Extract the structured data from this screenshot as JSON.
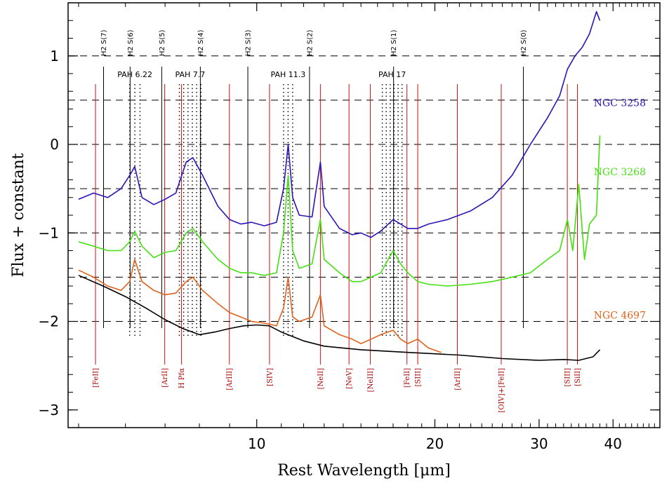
{
  "chart_data": {
    "type": "line",
    "xlabel": "Rest Wavelength [μm]",
    "ylabel": "Flux + constant",
    "xlim": [
      4.8,
      48
    ],
    "ylim": [
      -3.2,
      1.6
    ],
    "xscale": "log",
    "x_ticks": [
      {
        "v": 10,
        "label": "10"
      },
      {
        "v": 20,
        "label": "20"
      },
      {
        "v": 30,
        "label": "30"
      },
      {
        "v": 40,
        "label": "40"
      }
    ],
    "y_ticks": [
      {
        "v": 1,
        "label": "1"
      },
      {
        "v": 0,
        "label": "0"
      },
      {
        "v": -1,
        "label": "−1"
      },
      {
        "v": -2,
        "label": "−2"
      },
      {
        "v": -3,
        "label": "−3"
      }
    ],
    "dashed_levels": [
      1,
      0.5,
      0,
      -0.5,
      -1,
      -1.5,
      -2
    ],
    "colors": {
      "NGC 3258": "#2a14b8",
      "NGC 3268": "#44e010",
      "NGC 4697": "#e0621a",
      "template": "#000000",
      "ion_line": "#cc1111",
      "ion_text": "#aa0000"
    },
    "h2_lines": [
      {
        "x": 5.51,
        "label": "H2 S(7)"
      },
      {
        "x": 6.11,
        "label": "H2 S(6)"
      },
      {
        "x": 6.91,
        "label": "H2 S(5)"
      },
      {
        "x": 8.03,
        "label": "H2 S(4)"
      },
      {
        "x": 9.66,
        "label": "H2 S(3)"
      },
      {
        "x": 12.28,
        "label": "H2 S(2)"
      },
      {
        "x": 17.03,
        "label": "H2 S(1)"
      },
      {
        "x": 28.22,
        "label": "H2 S(0)"
      }
    ],
    "pah_features": [
      {
        "label": "PAH 6.22",
        "x1": 6.1,
        "x2": 6.35
      },
      {
        "label": "PAH 7.7",
        "x1": 7.4,
        "x2": 8.05
      },
      {
        "label": "PAH 11.3",
        "x1": 11.1,
        "x2": 11.5
      },
      {
        "label": "PAH 17",
        "x1": 16.3,
        "x2": 17.6
      }
    ],
    "ion_lines": [
      {
        "x": 5.34,
        "label": "[FeII]"
      },
      {
        "x": 6.99,
        "label": "[ArII]"
      },
      {
        "x": 7.46,
        "label": "H Pfα"
      },
      {
        "x": 8.99,
        "label": "[ArIII]"
      },
      {
        "x": 10.51,
        "label": "[SIV]"
      },
      {
        "x": 12.81,
        "label": "[NeII]"
      },
      {
        "x": 14.32,
        "label": "[NeV]"
      },
      {
        "x": 15.56,
        "label": "[NeIII]"
      },
      {
        "x": 17.94,
        "label": "[FeII]"
      },
      {
        "x": 18.71,
        "label": "[SIII]"
      },
      {
        "x": 21.83,
        "label": "[ArIII]"
      },
      {
        "x": 25.89,
        "label": "[OIV]+[FeII]"
      },
      {
        "x": 33.48,
        "label": "[SIII]"
      },
      {
        "x": 34.82,
        "label": "[SiII]"
      }
    ],
    "series": [
      {
        "name": "NGC 3258",
        "x": [
          5.0,
          5.3,
          5.6,
          5.9,
          6.1,
          6.22,
          6.4,
          6.7,
          7.0,
          7.3,
          7.6,
          7.8,
          8.1,
          8.6,
          9.0,
          9.4,
          9.8,
          10.3,
          10.8,
          11.1,
          11.3,
          11.5,
          11.8,
          12.4,
          12.81,
          13.0,
          13.8,
          14.5,
          15.0,
          15.6,
          16.2,
          17.0,
          17.5,
          18.0,
          18.7,
          19.5,
          21.0,
          23.0,
          25.0,
          27.0,
          29.0,
          31.0,
          32.5,
          33.5,
          34.5,
          35.5,
          36.5,
          37.5,
          38.0
        ],
        "values": [
          -0.62,
          -0.55,
          -0.6,
          -0.5,
          -0.35,
          -0.25,
          -0.6,
          -0.68,
          -0.62,
          -0.55,
          -0.2,
          -0.15,
          -0.35,
          -0.7,
          -0.85,
          -0.9,
          -0.88,
          -0.92,
          -0.88,
          -0.5,
          0.0,
          -0.6,
          -0.8,
          -0.82,
          -0.2,
          -0.7,
          -0.95,
          -1.02,
          -1.0,
          -1.05,
          -0.98,
          -0.85,
          -0.9,
          -0.95,
          -0.95,
          -0.9,
          -0.85,
          -0.75,
          -0.6,
          -0.35,
          0.0,
          0.3,
          0.55,
          0.85,
          1.0,
          1.1,
          1.25,
          1.5,
          1.4
        ]
      },
      {
        "name": "NGC 3268",
        "x": [
          5.0,
          5.3,
          5.6,
          5.9,
          6.1,
          6.22,
          6.4,
          6.7,
          7.0,
          7.3,
          7.6,
          7.8,
          8.1,
          8.6,
          9.0,
          9.4,
          9.8,
          10.3,
          10.8,
          11.1,
          11.3,
          11.5,
          11.8,
          12.4,
          12.81,
          13.0,
          13.8,
          14.5,
          15.0,
          15.6,
          16.2,
          17.0,
          17.5,
          18.0,
          18.7,
          19.5,
          21.0,
          23.0,
          25.0,
          27.0,
          29.0,
          31.0,
          32.5,
          33.5,
          34.2,
          35.0,
          35.8,
          36.5,
          37.5,
          38.0
        ],
        "values": [
          -1.1,
          -1.15,
          -1.2,
          -1.2,
          -1.1,
          -0.98,
          -1.15,
          -1.28,
          -1.22,
          -1.2,
          -1.0,
          -0.95,
          -1.1,
          -1.3,
          -1.4,
          -1.45,
          -1.45,
          -1.48,
          -1.45,
          -1.0,
          -0.35,
          -1.2,
          -1.4,
          -1.35,
          -0.85,
          -1.3,
          -1.45,
          -1.55,
          -1.55,
          -1.5,
          -1.45,
          -1.2,
          -1.35,
          -1.45,
          -1.55,
          -1.58,
          -1.6,
          -1.58,
          -1.55,
          -1.5,
          -1.45,
          -1.3,
          -1.2,
          -0.85,
          -1.2,
          -0.45,
          -1.3,
          -0.9,
          -0.8,
          0.1
        ]
      },
      {
        "name": "NGC 4697",
        "x": [
          5.0,
          5.3,
          5.6,
          5.9,
          6.1,
          6.22,
          6.4,
          6.7,
          7.0,
          7.3,
          7.6,
          7.8,
          8.1,
          8.6,
          9.0,
          9.4,
          9.8,
          10.3,
          10.8,
          11.1,
          11.3,
          11.5,
          11.8,
          12.4,
          12.81,
          13.0,
          13.8,
          14.5,
          15.0,
          15.6,
          16.2,
          17.0,
          17.5,
          18.0,
          18.7,
          19.5,
          20.5
        ],
        "values": [
          -1.42,
          -1.5,
          -1.6,
          -1.65,
          -1.55,
          -1.3,
          -1.55,
          -1.65,
          -1.7,
          -1.68,
          -1.55,
          -1.5,
          -1.65,
          -1.8,
          -1.9,
          -1.95,
          -2.0,
          -2.02,
          -2.05,
          -1.85,
          -1.5,
          -1.95,
          -2.0,
          -1.95,
          -1.7,
          -2.05,
          -2.15,
          -2.2,
          -2.25,
          -2.2,
          -2.15,
          -2.1,
          -2.2,
          -2.25,
          -2.2,
          -2.3,
          -2.35
        ]
      },
      {
        "name": "template",
        "x": [
          5.0,
          5.5,
          6.0,
          6.5,
          7.0,
          7.5,
          8.0,
          8.5,
          9.0,
          9.5,
          10.0,
          10.5,
          11.0,
          12.0,
          13.0,
          15.0,
          18.0,
          22.0,
          26.0,
          30.0,
          33.0,
          35.0,
          37.0,
          38.0
        ],
        "values": [
          -1.48,
          -1.6,
          -1.72,
          -1.85,
          -1.98,
          -2.08,
          -2.15,
          -2.12,
          -2.08,
          -2.05,
          -2.04,
          -2.05,
          -2.12,
          -2.22,
          -2.28,
          -2.32,
          -2.35,
          -2.38,
          -2.42,
          -2.44,
          -2.43,
          -2.44,
          -2.4,
          -2.32
        ]
      }
    ],
    "series_labels": [
      {
        "name": "NGC 3258",
        "y": 0.43
      },
      {
        "name": "NGC 3268",
        "y": -0.35
      },
      {
        "name": "NGC 4697",
        "y": -1.97
      }
    ]
  }
}
